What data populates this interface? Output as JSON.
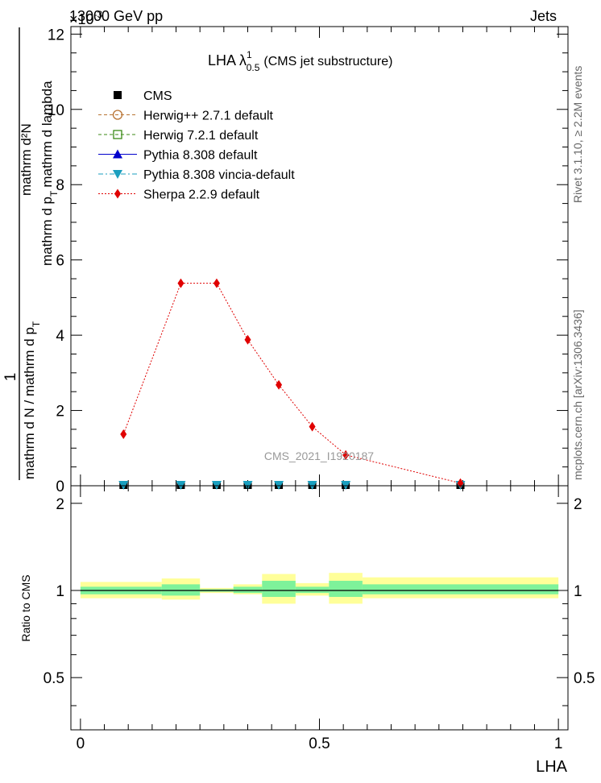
{
  "header": {
    "left": "13000 GeV pp",
    "right": "Jets",
    "exponent": "×10",
    "exponent_power": "-3"
  },
  "side_labels": {
    "rivet": "Rivet 3.1.10, ≥ 2.2M events",
    "mcplots": "mcplots.cern.ch [arXiv:1306.3436]"
  },
  "watermark": "CMS_2021_I1920187",
  "chart_data": [
    {
      "type": "line",
      "title": "LHA λ",
      "title_sup": "1",
      "title_sub": "0.5",
      "title_suffix": "(CMS jet substructure)",
      "ylabel_numerator": "1",
      "ylabel_denominator": "mathrm d N / mathrm d p",
      "ylabel_denominator_sub": "T",
      "ylabel_top": "mathrm d²N",
      "ylabel_bottom": "mathrm d p",
      "ylabel_bottom_sub": "T",
      "ylabel_bottom_suffix": "mathrm d lambda",
      "xlim": [
        -0.02,
        1.02
      ],
      "ylim": [
        0,
        12.2
      ],
      "y_ticks": [
        0,
        2,
        4,
        6,
        8,
        10,
        12
      ],
      "legend_position": "top-left",
      "series": [
        {
          "name": "CMS",
          "color": "#000000",
          "marker": "square",
          "x": [
            0.09,
            0.21,
            0.285,
            0.35,
            0.415,
            0.485,
            0.555,
            0.795
          ],
          "y": [
            0.0,
            0.0,
            0.0,
            0.0,
            0.0,
            0.0,
            0.0,
            0.0
          ]
        },
        {
          "name": "Herwig++ 2.7.1 default",
          "color": "#b87333",
          "marker": "circle-open",
          "dash": "dashed",
          "x": [
            0.09,
            0.21,
            0.285,
            0.35,
            0.415,
            0.485,
            0.555,
            0.795
          ],
          "y": [
            0.0,
            0.0,
            0.0,
            0.0,
            0.0,
            0.0,
            0.0,
            0.0
          ]
        },
        {
          "name": "Herwig 7.2.1 default",
          "color": "#3b8a16",
          "marker": "square-open",
          "dash": "dashed",
          "x": [
            0.09,
            0.21,
            0.285,
            0.35,
            0.415,
            0.485,
            0.555,
            0.795
          ],
          "y": [
            0.0,
            0.0,
            0.0,
            0.0,
            0.0,
            0.0,
            0.0,
            0.0
          ]
        },
        {
          "name": "Pythia 8.308 default",
          "color": "#0000cc",
          "marker": "triangle-up",
          "dash": "solid",
          "x": [
            0.09,
            0.21,
            0.285,
            0.35,
            0.415,
            0.485,
            0.555,
            0.795
          ],
          "y": [
            0.0,
            0.0,
            0.0,
            0.0,
            0.0,
            0.0,
            0.0,
            0.0
          ]
        },
        {
          "name": "Pythia 8.308 vincia-default",
          "color": "#1a9fbf",
          "marker": "triangle-down",
          "dash": "dashdot",
          "x": [
            0.09,
            0.21,
            0.285,
            0.35,
            0.415,
            0.485,
            0.555,
            0.795
          ],
          "y": [
            0.0,
            0.0,
            0.0,
            0.0,
            0.0,
            0.0,
            0.0,
            0.0
          ]
        },
        {
          "name": "Sherpa 2.2.9 default",
          "color": "#e00000",
          "marker": "diamond",
          "dash": "dotted",
          "x": [
            0.09,
            0.21,
            0.285,
            0.35,
            0.415,
            0.485,
            0.555,
            0.795
          ],
          "y": [
            1.37,
            5.38,
            5.38,
            3.88,
            2.68,
            1.57,
            0.82,
            0.07
          ]
        }
      ]
    },
    {
      "type": "area",
      "ylabel": "Ratio to CMS",
      "xlabel": "LHA",
      "xlim": [
        -0.02,
        1.02
      ],
      "ylim": [
        0.33,
        2.3
      ],
      "y_ticks": [
        0.5,
        1,
        2
      ],
      "x_ticks": [
        0,
        0.5,
        1
      ],
      "bins": [
        {
          "lo": 0.0,
          "hi": 0.17,
          "inner": [
            0.97,
            1.03
          ],
          "outer": [
            0.94,
            1.07
          ]
        },
        {
          "lo": 0.17,
          "hi": 0.25,
          "inner": [
            0.96,
            1.05
          ],
          "outer": [
            0.93,
            1.1
          ]
        },
        {
          "lo": 0.25,
          "hi": 0.32,
          "inner": [
            0.99,
            1.01
          ],
          "outer": [
            0.98,
            1.02
          ]
        },
        {
          "lo": 0.32,
          "hi": 0.38,
          "inner": [
            0.98,
            1.03
          ],
          "outer": [
            0.97,
            1.05
          ]
        },
        {
          "lo": 0.38,
          "hi": 0.45,
          "inner": [
            0.95,
            1.08
          ],
          "outer": [
            0.9,
            1.14
          ]
        },
        {
          "lo": 0.45,
          "hi": 0.52,
          "inner": [
            0.98,
            1.03
          ],
          "outer": [
            0.96,
            1.06
          ]
        },
        {
          "lo": 0.52,
          "hi": 0.59,
          "inner": [
            0.95,
            1.08
          ],
          "outer": [
            0.9,
            1.15
          ]
        },
        {
          "lo": 0.59,
          "hi": 1.0,
          "inner": [
            0.97,
            1.05
          ],
          "outer": [
            0.94,
            1.11
          ]
        }
      ]
    }
  ]
}
